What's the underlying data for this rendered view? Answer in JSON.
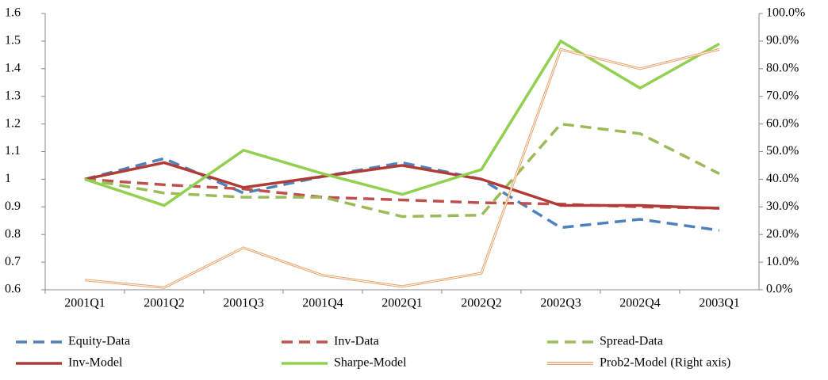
{
  "chart_data": {
    "type": "line",
    "categories": [
      "2001Q1",
      "2001Q2",
      "2001Q3",
      "2001Q4",
      "2002Q1",
      "2002Q2",
      "2002Q3",
      "2002Q4",
      "2003Q1"
    ],
    "ylim": [
      0.6,
      1.6
    ],
    "yticks": [
      0.6,
      0.7,
      0.8,
      0.9,
      1,
      1.1,
      1.2,
      1.3,
      1.4,
      1.5,
      1.6
    ],
    "y2lim": [
      0,
      100
    ],
    "y2ticks": [
      {
        "value": 0,
        "label": "0.0%"
      },
      {
        "value": 10,
        "label": "10.0%"
      },
      {
        "value": 20,
        "label": "20.0%"
      },
      {
        "value": 30,
        "label": "30.0%"
      },
      {
        "value": 40,
        "label": "40.0%"
      },
      {
        "value": 50,
        "label": "50.0%"
      },
      {
        "value": 60,
        "label": "60.0%"
      },
      {
        "value": 70,
        "label": "70.0%"
      },
      {
        "value": 80,
        "label": "80.0%"
      },
      {
        "value": 90,
        "label": "90.0%"
      },
      {
        "value": 100,
        "label": "100.0%"
      }
    ],
    "grid": false,
    "series": [
      {
        "name": "Equity-Data",
        "color": "#4f81bd",
        "dash": true,
        "values": [
          1.0,
          1.075,
          0.95,
          1.01,
          1.06,
          1.0,
          0.825,
          0.855,
          0.815
        ]
      },
      {
        "name": "Inv-Data",
        "color": "#c0504d",
        "dash": true,
        "values": [
          1.0,
          0.98,
          0.965,
          0.935,
          0.925,
          0.915,
          0.91,
          0.9,
          0.895
        ]
      },
      {
        "name": "Spread-Data",
        "color": "#9bbb59",
        "dash": true,
        "values": [
          1.0,
          0.95,
          0.935,
          0.935,
          0.865,
          0.87,
          1.2,
          1.165,
          1.02
        ]
      },
      {
        "name": "Inv-Model",
        "color": "#b03c38",
        "dash": false,
        "values": [
          1.0,
          1.06,
          0.97,
          1.01,
          1.05,
          1.0,
          0.905,
          0.905,
          0.895
        ]
      },
      {
        "name": "Sharpe-Model",
        "color": "#92d050",
        "dash": false,
        "values": [
          1.0,
          0.905,
          1.105,
          1.02,
          0.945,
          1.035,
          1.5,
          1.33,
          1.49
        ]
      },
      {
        "name": "Prob2-Model (Right axis)",
        "color": "#e9a06a",
        "dash": false,
        "axis": "y2",
        "values": [
          3.5,
          0.8,
          15.2,
          5.2,
          1.2,
          6.0,
          87.0,
          80.0,
          87.0
        ]
      }
    ]
  }
}
